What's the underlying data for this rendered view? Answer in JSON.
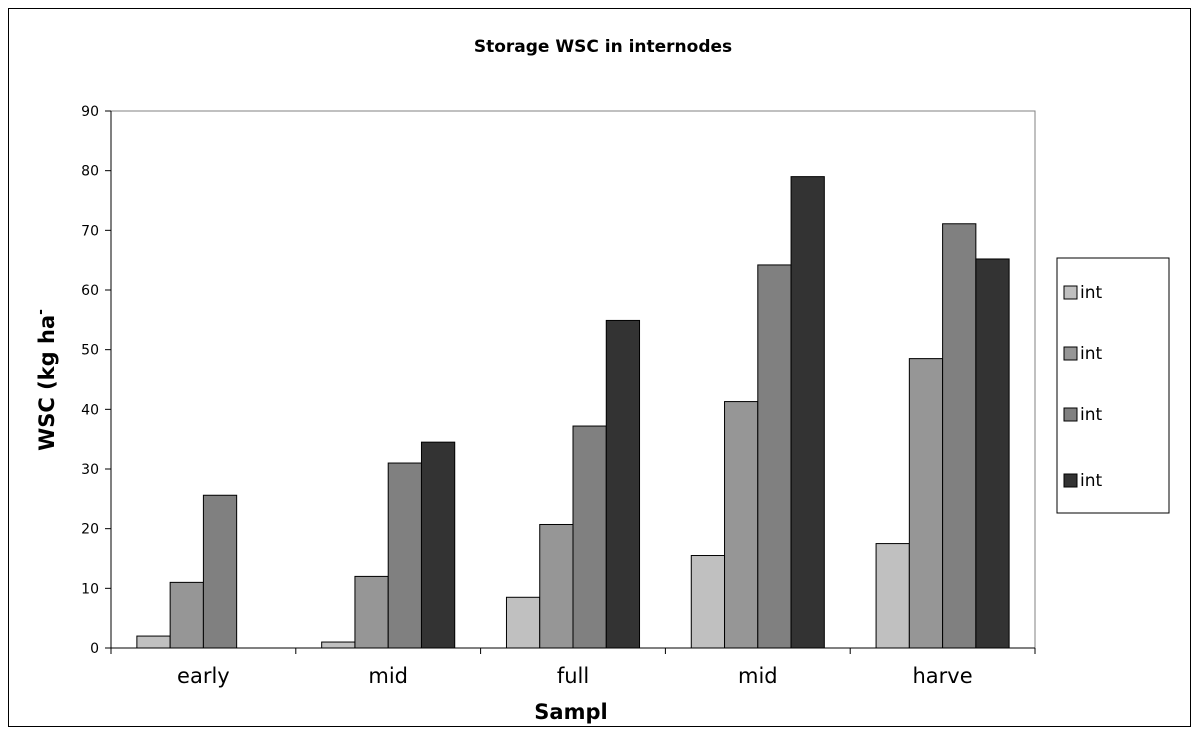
{
  "chart_data": {
    "type": "bar",
    "title": "Storage WSC in internodes",
    "xlabel": "Sampl",
    "ylabel": "WSC (kg ha",
    "ylabel_suffix": "-",
    "categories": [
      "early",
      "mid",
      "full",
      "mid",
      "harve"
    ],
    "ylim": [
      0,
      90
    ],
    "yticks": [
      0,
      10,
      20,
      30,
      40,
      50,
      60,
      70,
      80,
      90
    ],
    "grid": false,
    "legend_position": "right",
    "series": [
      {
        "name": "int",
        "color": "#c0c0c0",
        "values": [
          2,
          1,
          8.5,
          15.5,
          17.5
        ]
      },
      {
        "name": "int",
        "color": "#969696",
        "values": [
          11,
          12,
          20.7,
          41.3,
          48.5
        ]
      },
      {
        "name": "int",
        "color": "#808080",
        "values": [
          25.6,
          31,
          37.2,
          64.2,
          71.1
        ]
      },
      {
        "name": "int",
        "color": "#333333",
        "values": [
          null,
          34.5,
          54.9,
          79,
          65.2
        ]
      }
    ]
  }
}
